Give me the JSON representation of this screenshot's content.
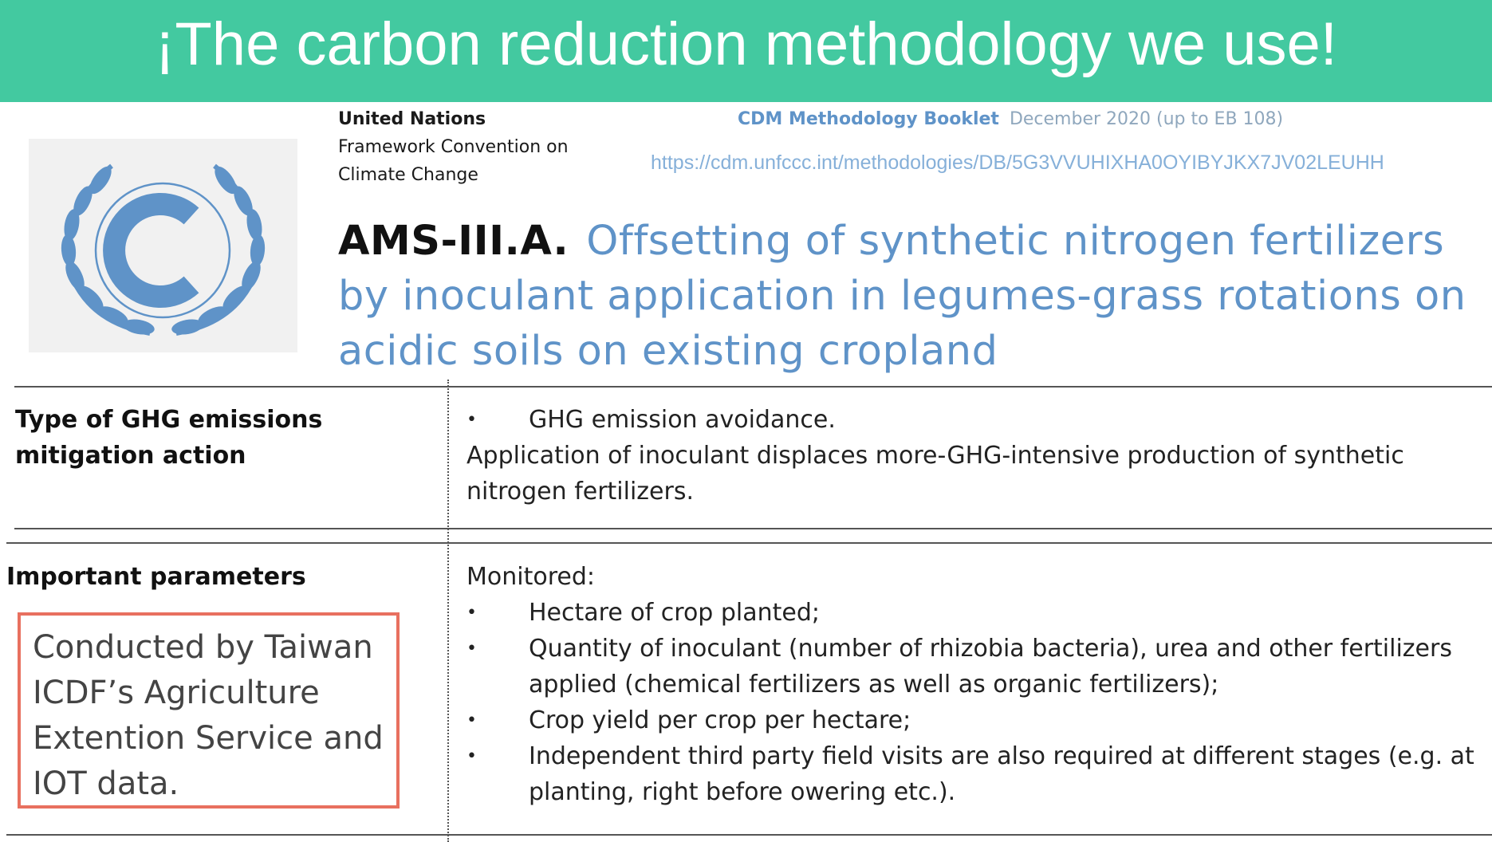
{
  "banner": {
    "title": "¡The carbon reduction methodology we use!",
    "background_color": "#43c9a0"
  },
  "logo": {
    "icon": "unfccc-emblem-icon",
    "color": "#5f93c8"
  },
  "organization": {
    "name": "United Nations",
    "line2": "Framework Convention on",
    "line3": "Climate Change"
  },
  "booklet": {
    "title": "CDM Methodology Booklet",
    "date": "December 2020 (up to EB 108)",
    "url": "https://cdm.unfccc.int/methodologies/DB/5G3VVUHIXHA0OYIBYJKX7JV02LEUHH"
  },
  "methodology": {
    "code": "AMS-III.A.",
    "title": "Offsetting of synthetic nitrogen fertilizers by inoculant application in legumes-grass rotations on acidic soils on existing cropland"
  },
  "table": {
    "row1": {
      "label": "Type of GHG emissions mitigation action",
      "bullet": "GHG emission avoidance.",
      "text": "Application of inoculant displaces more-GHG-intensive production of synthetic nitrogen fertilizers."
    },
    "row2": {
      "label": "Important parameters",
      "heading": "Monitored:",
      "items": [
        "Hectare of crop planted;",
        "Quantity of inoculant (number of rhizobia bacteria), urea and other fertilizers applied (chemical fertilizers as well as organic fertilizers);",
        "Crop yield per crop per hectare;",
        "Independent third party field visits are also required at different stages (e.g. at planting, right before owering etc.)."
      ]
    }
  },
  "note": {
    "text": "Conducted by Taiwan ICDF’s  Agriculture Extention Service and IOT data.",
    "border_color": "#e8705f"
  }
}
